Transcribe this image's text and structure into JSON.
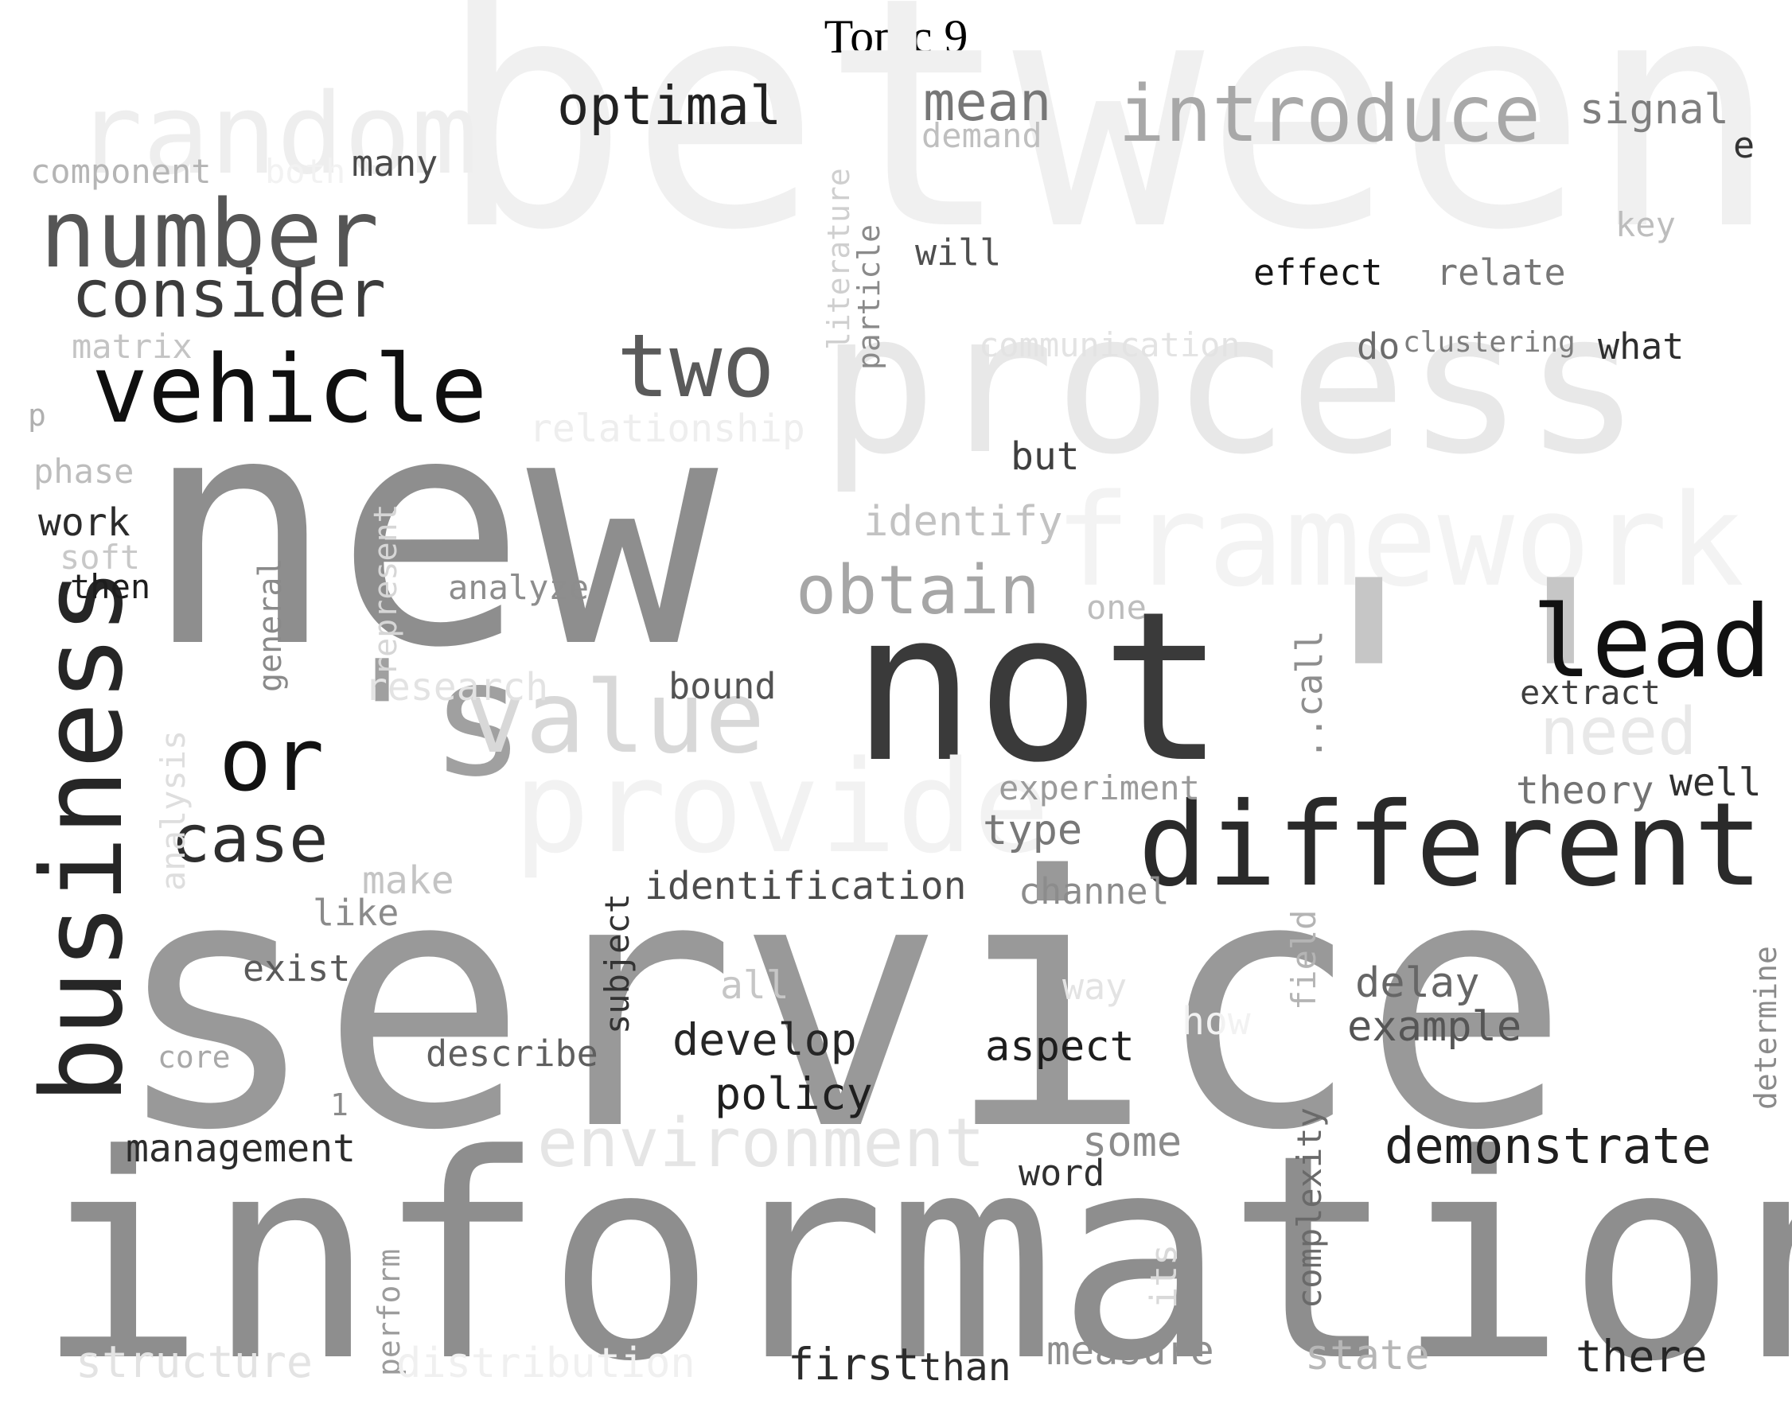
{
  "title": "Topic 9",
  "words": [
    {
      "text": "between",
      "color": "#f0f0f0"
    },
    {
      "text": "process",
      "color": "#e8e8e8"
    },
    {
      "text": "framework",
      "color": "#f3f3f3"
    },
    {
      "text": "random",
      "color": "#eeeeee"
    },
    {
      "text": "introduce",
      "color": "#a8a8a8"
    },
    {
      "text": "service",
      "color": "#999999"
    },
    {
      "text": "information",
      "color": "#8e8e8e"
    },
    {
      "text": "new",
      "color": "#8e8e8e"
    },
    {
      "text": "not",
      "color": "#3a3a3a"
    },
    {
      "text": "''",
      "color": "#c6c6c6"
    },
    {
      "text": "'s",
      "color": "#a0a0a0"
    },
    {
      "text": "value",
      "color": "#d8d8d8"
    },
    {
      "text": "provide",
      "color": "#f2f2f2"
    },
    {
      "text": "different",
      "color": "#2a2a2a"
    },
    {
      "text": "lead",
      "color": "#111111"
    },
    {
      "text": "business",
      "color": "#262626"
    },
    {
      "text": "vehicle",
      "color": "#0f0f0f"
    },
    {
      "text": "number",
      "color": "#555555"
    },
    {
      "text": "consider",
      "color": "#3c3c3c"
    },
    {
      "text": "two",
      "color": "#5a5a5a"
    },
    {
      "text": "obtain",
      "color": "#a6a6a6"
    },
    {
      "text": "optimal",
      "color": "#222222"
    },
    {
      "text": "mean",
      "color": "#777777"
    },
    {
      "text": "or",
      "color": "#121212"
    },
    {
      "text": "case",
      "color": "#2e2e2e"
    },
    {
      "text": "environment",
      "color": "#e5e5e5"
    },
    {
      "text": "need",
      "color": "#e8e8e8"
    },
    {
      "text": "demonstrate",
      "color": "#1f1f1f"
    },
    {
      "text": "management",
      "color": "#2b2b2b"
    },
    {
      "text": "signal",
      "color": "#7f7f7f"
    },
    {
      "text": "e",
      "color": "#333333"
    },
    {
      "text": "demand",
      "color": "#bfbfbf"
    },
    {
      "text": "component",
      "color": "#b5b5b5"
    },
    {
      "text": "both",
      "color": "#f2f2f2"
    },
    {
      "text": "many",
      "color": "#4a4a4a"
    },
    {
      "text": "literature",
      "color": "#cfcfcf"
    },
    {
      "text": "particle",
      "color": "#8a8a8a"
    },
    {
      "text": "will",
      "color": "#4f4f4f"
    },
    {
      "text": "key",
      "color": "#bdbdbd"
    },
    {
      "text": "effect",
      "color": "#161616"
    },
    {
      "text": "relate",
      "color": "#777777"
    },
    {
      "text": "matrix",
      "color": "#c4c4c4"
    },
    {
      "text": "communication",
      "color": "#e3e3e3"
    },
    {
      "text": "do",
      "color": "#6b6b6b"
    },
    {
      "text": "clustering",
      "color": "#7d7d7d"
    },
    {
      "text": "what",
      "color": "#2e2e2e"
    },
    {
      "text": "p",
      "color": "#b0b0b0"
    },
    {
      "text": "relationship",
      "color": "#eeeeee"
    },
    {
      "text": "but",
      "color": "#3f3f3f"
    },
    {
      "text": "phase",
      "color": "#bdbdbd"
    },
    {
      "text": "identify",
      "color": "#c2c2c2"
    },
    {
      "text": "work",
      "color": "#2b2b2b"
    },
    {
      "text": "soft",
      "color": "#c8c8c8"
    },
    {
      "text": "then",
      "color": "#1d1d1d"
    },
    {
      "text": "general",
      "color": "#8a8a8a"
    },
    {
      "text": "represent",
      "color": "#d6d6d6"
    },
    {
      "text": "analyze",
      "color": "#8d8d8d"
    },
    {
      "text": "one",
      "color": "#bdbdbd"
    },
    {
      "text": "research",
      "color": "#e3e3e3"
    },
    {
      "text": "bound",
      "color": "#535353"
    },
    {
      "text": "..call",
      "color": "#8e8e8e"
    },
    {
      "text": "extract",
      "color": "#3e3e3e"
    },
    {
      "text": "analysis",
      "color": "#dedede"
    },
    {
      "text": "experiment",
      "color": "#9a9a9a"
    },
    {
      "text": "theory",
      "color": "#737373"
    },
    {
      "text": "well",
      "color": "#2f2f2f"
    },
    {
      "text": "type",
      "color": "#787878"
    },
    {
      "text": "make",
      "color": "#c4c4c4"
    },
    {
      "text": "like",
      "color": "#8b8b8b"
    },
    {
      "text": "identification",
      "color": "#4c4c4c"
    },
    {
      "text": "channel",
      "color": "#8c8c8c"
    },
    {
      "text": "subject",
      "color": "#333333"
    },
    {
      "text": "exist",
      "color": "#5a5a5a"
    },
    {
      "text": "field",
      "color": "#b4b4b4"
    },
    {
      "text": "determine",
      "color": "#8a8a8a"
    },
    {
      "text": "all",
      "color": "#c6c6c6"
    },
    {
      "text": "way",
      "color": "#e3e3e3"
    },
    {
      "text": "delay",
      "color": "#666666"
    },
    {
      "text": "how",
      "color": "#f2f2f2"
    },
    {
      "text": "example",
      "color": "#555555"
    },
    {
      "text": "core",
      "color": "#a8a8a8"
    },
    {
      "text": "describe",
      "color": "#5f5f5f"
    },
    {
      "text": "develop",
      "color": "#262626"
    },
    {
      "text": "aspect",
      "color": "#1d1d1d"
    },
    {
      "text": "policy",
      "color": "#1f1f1f"
    },
    {
      "text": "1",
      "color": "#8a8a8a"
    },
    {
      "text": "some",
      "color": "#8b8b8b"
    },
    {
      "text": "word",
      "color": "#303030"
    },
    {
      "text": "complexity",
      "color": "#6a6a6a"
    },
    {
      "text": "perform",
      "color": "#9c9c9c"
    },
    {
      "text": "its",
      "color": "#d9d9d9"
    },
    {
      "text": "structure",
      "color": "#e3e3e3"
    },
    {
      "text": "distribution",
      "color": "#f0f0f0"
    },
    {
      "text": "first",
      "color": "#2b2b2b"
    },
    {
      "text": "than",
      "color": "#2b2b2b"
    },
    {
      "text": "measure",
      "color": "#8e8e8e"
    },
    {
      "text": "state",
      "color": "#b7b7b7"
    },
    {
      "text": "there",
      "color": "#262626"
    }
  ]
}
